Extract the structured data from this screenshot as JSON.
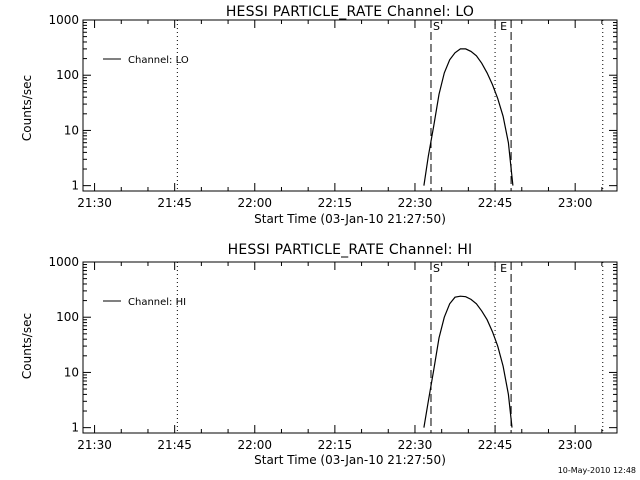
{
  "chart_data": [
    {
      "type": "line",
      "title": "HESSI PARTICLE_RATE Channel: LO",
      "xlabel": "Start Time (03-Jan-10 21:27:50)",
      "ylabel": "Counts/sec",
      "yscale": "log",
      "ylim": [
        0.8,
        1000
      ],
      "xlim": [
        "21:27:50",
        "23:07:50"
      ],
      "x_ticks": [
        "21:30",
        "21:45",
        "22:00",
        "22:15",
        "22:30",
        "22:45",
        "23:00"
      ],
      "y_ticks": [
        "1",
        "10",
        "100",
        "1000"
      ],
      "legend": {
        "location": "top-left",
        "entries": [
          "Channel: LO"
        ]
      },
      "series": [
        {
          "name": "Channel: LO",
          "x": [
            "22:31:40",
            "22:32:30",
            "22:33:30",
            "22:34:30",
            "22:35:30",
            "22:36:30",
            "22:37:30",
            "22:38:30",
            "22:39:30",
            "22:40:30",
            "22:41:30",
            "22:42:30",
            "22:43:30",
            "22:44:30",
            "22:45:30",
            "22:46:30",
            "22:47:30",
            "22:48:20"
          ],
          "values": [
            1,
            3.4,
            12,
            45,
            110,
            190,
            255,
            300,
            300,
            270,
            225,
            165,
            110,
            68,
            38,
            18,
            6,
            1
          ]
        }
      ],
      "markers": [
        {
          "label": "S",
          "time": "22:33:00",
          "style": "dashed"
        },
        {
          "label": "E",
          "time": "22:48:00",
          "style": "dashed"
        },
        {
          "time": "21:45:30",
          "style": "dotted"
        },
        {
          "time": "22:45:00",
          "style": "dotted"
        },
        {
          "time": "23:05:10",
          "style": "dotted"
        }
      ]
    },
    {
      "type": "line",
      "title": "HESSI PARTICLE_RATE Channel: HI",
      "xlabel": "Start Time (03-Jan-10 21:27:50)",
      "ylabel": "Counts/sec",
      "yscale": "log",
      "ylim": [
        0.8,
        1000
      ],
      "xlim": [
        "21:27:50",
        "23:07:50"
      ],
      "x_ticks": [
        "21:30",
        "21:45",
        "22:00",
        "22:15",
        "22:30",
        "22:45",
        "23:00"
      ],
      "y_ticks": [
        "1",
        "10",
        "100",
        "1000"
      ],
      "legend": {
        "location": "top-left",
        "entries": [
          "Channel: HI"
        ]
      },
      "series": [
        {
          "name": "Channel: HI",
          "x": [
            "22:31:40",
            "22:32:30",
            "22:33:30",
            "22:34:30",
            "22:35:30",
            "22:36:30",
            "22:37:30",
            "22:38:30",
            "22:39:30",
            "22:40:30",
            "22:41:30",
            "22:42:30",
            "22:43:30",
            "22:44:30",
            "22:45:30",
            "22:46:30",
            "22:47:30",
            "22:48:10"
          ],
          "values": [
            1,
            3,
            11,
            42,
            100,
            175,
            230,
            240,
            235,
            210,
            175,
            130,
            90,
            55,
            30,
            13,
            4,
            1
          ]
        }
      ],
      "markers": [
        {
          "label": "S",
          "time": "22:33:00",
          "style": "dashed"
        },
        {
          "label": "E",
          "time": "22:48:00",
          "style": "dashed"
        },
        {
          "time": "21:45:30",
          "style": "dotted"
        },
        {
          "time": "22:45:00",
          "style": "dotted"
        },
        {
          "time": "23:05:10",
          "style": "dotted"
        }
      ]
    }
  ],
  "footer": "10-May-2010 12:48"
}
